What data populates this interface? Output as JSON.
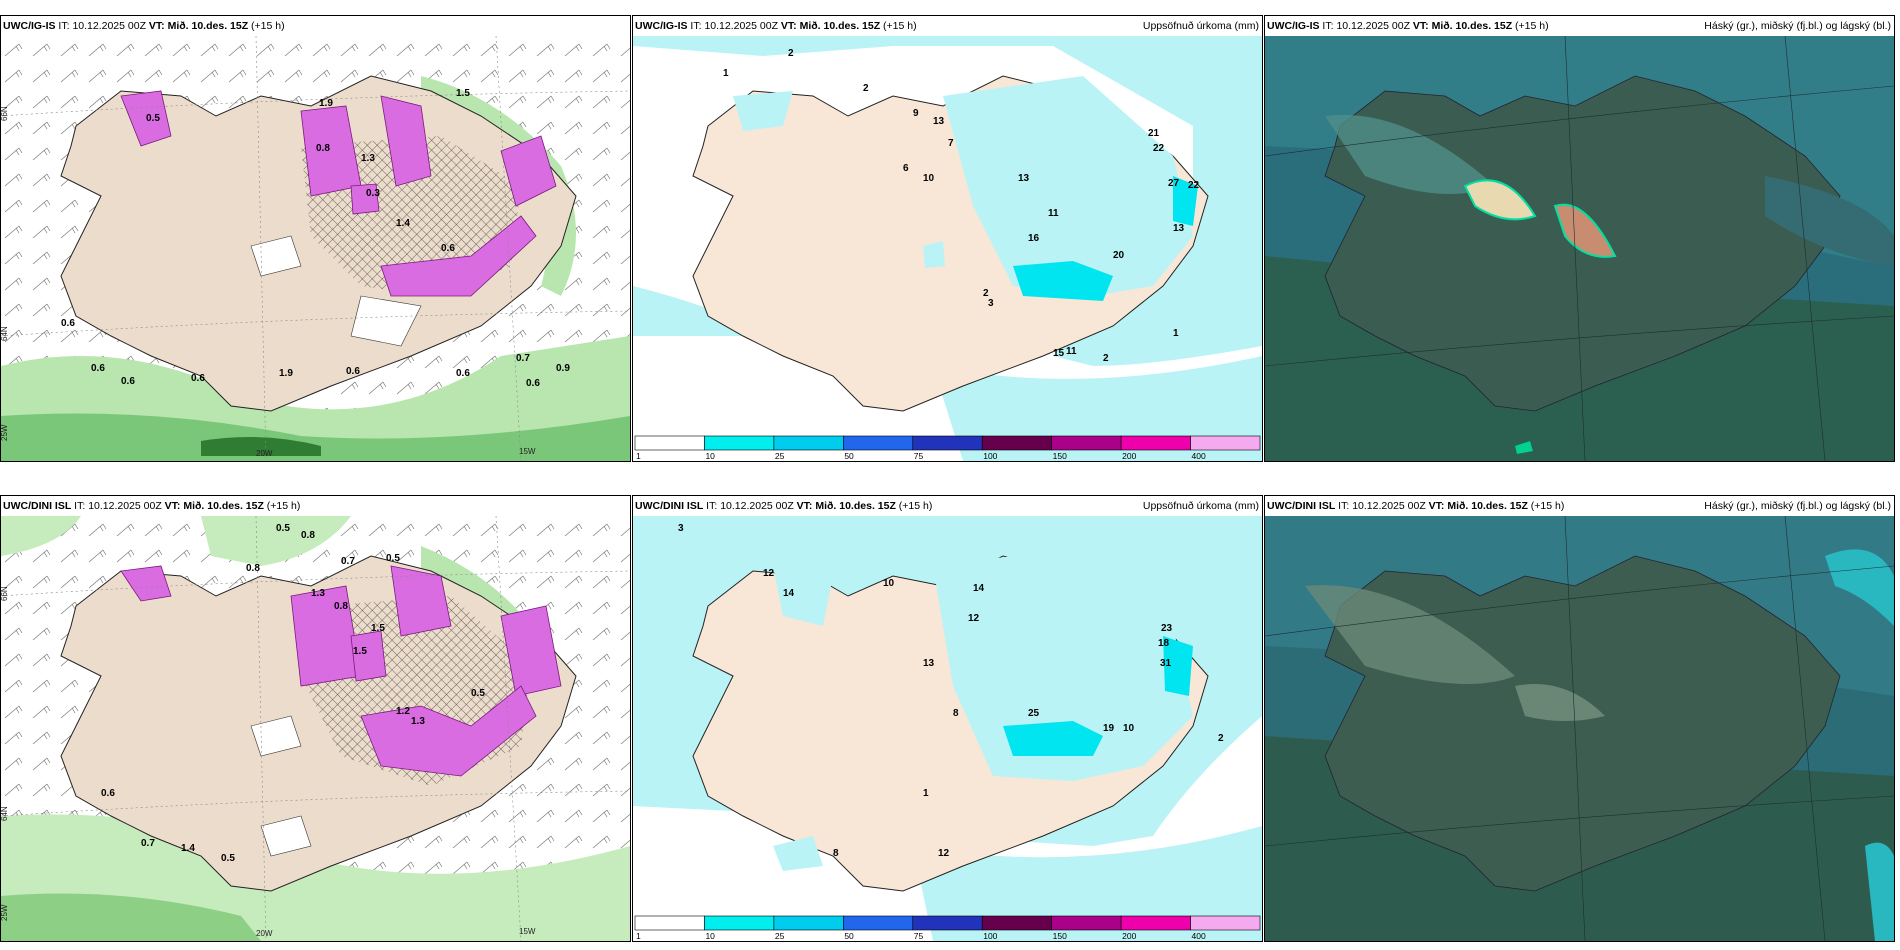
{
  "time_info": {
    "issue_label": "IT:",
    "issue_time": "10.12.2025 00Z",
    "valid_label": "VT:",
    "valid_time": "Mið. 10.des. 15Z",
    "lead": "(+15 h)"
  },
  "models": {
    "top": "UWC/IG-IS",
    "bottom": "UWC/DINI ISL"
  },
  "titles": {
    "precip": "Uppsöfnuð úrkoma (mm)",
    "cloud": "Háský (gr.), miðský (fj.bl.) og lágský (bl.)"
  },
  "coords": {
    "lat66": "66N",
    "lat64": "64N",
    "lon25": "25W",
    "lon20": "20W",
    "lon15": "15W"
  },
  "colorbar": {
    "labels": [
      "1",
      "10",
      "25",
      "50",
      "75",
      "100",
      "150",
      "200",
      "400"
    ],
    "colors": [
      "#ffffff",
      "#00eeee",
      "#00ccee",
      "#2266ee",
      "#2233bb",
      "#66004d",
      "#aa008a",
      "#ee00aa",
      "#f5aaf0"
    ]
  },
  "panels": {
    "top_left_values": [
      "1.5",
      "0.5",
      "1.9",
      "1.3",
      "1.4",
      "0.6",
      "0.3",
      "0.8",
      "0.6",
      "0.6",
      "0.6",
      "0.6",
      "1.9",
      "0.6",
      "0.6",
      "0.7",
      "0.6",
      "0.9"
    ],
    "top_mid_values": [
      "2",
      "1",
      "2",
      "9",
      "13",
      "7",
      "10",
      "6",
      "13",
      "16",
      "11",
      "21",
      "22",
      "27",
      "22",
      "13",
      "20",
      "15",
      "11",
      "2",
      "3",
      "2",
      "1"
    ],
    "bot_left_values": [
      "0.5",
      "0.8",
      "0.5",
      "1.5",
      "0.7",
      "1.3",
      "1.5",
      "0.5",
      "1.2",
      "1.3",
      "0.8",
      "0.8",
      "0.6",
      "0.7",
      "1.4",
      "0.5"
    ],
    "bot_mid_values": [
      "3",
      "12",
      "14",
      "10",
      "14",
      "12",
      "13",
      "8",
      "18",
      "31",
      "23",
      "25",
      "10",
      "19",
      "1",
      "12",
      "8",
      "2"
    ]
  }
}
